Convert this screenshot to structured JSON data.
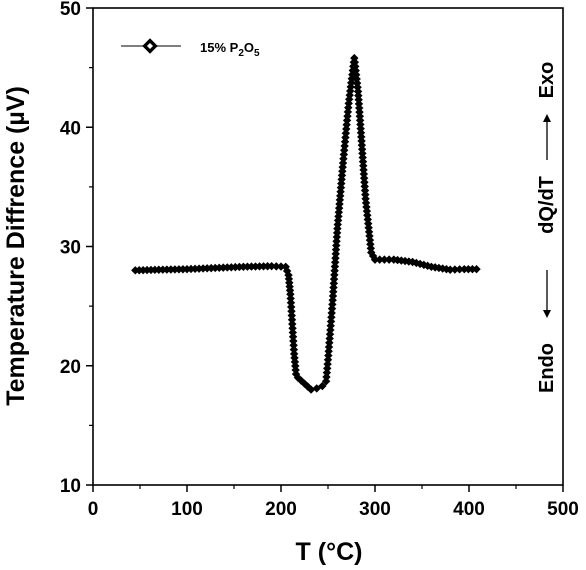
{
  "chart_data": {
    "type": "scatter",
    "title": "",
    "xlabel": "T (°C)",
    "ylabel": "Temperature Diffrence (µV)",
    "xlim": [
      0,
      500
    ],
    "ylim": [
      10,
      50
    ],
    "x_ticks": [
      0,
      100,
      200,
      300,
      400,
      500
    ],
    "y_ticks": [
      10,
      20,
      30,
      40,
      50
    ],
    "grid": false,
    "legend_placement": "top-left",
    "annotations": {
      "exo": "Exo",
      "dqdt": "dQ/dT",
      "endo": "Endo"
    },
    "series": [
      {
        "name": "15% P2O5",
        "marker": "diamond",
        "color": "#000000",
        "x": [
          45,
          70,
          100,
          130,
          160,
          190,
          205,
          208,
          210,
          212,
          214,
          216,
          218,
          225,
          232,
          238,
          244,
          248,
          250,
          255,
          260,
          266,
          272,
          278,
          282,
          286,
          290,
          296,
          300,
          320,
          340,
          360,
          380,
          395,
          408
        ],
        "y": [
          28.0,
          28.05,
          28.1,
          28.2,
          28.3,
          28.35,
          28.3,
          27.6,
          26.0,
          23.5,
          21.0,
          19.3,
          19.0,
          18.5,
          18.0,
          18.1,
          18.3,
          18.7,
          20.5,
          25.5,
          31.5,
          37.0,
          42.0,
          45.8,
          43.0,
          38.5,
          34.0,
          29.5,
          28.9,
          28.9,
          28.7,
          28.3,
          28.05,
          28.1,
          28.1
        ]
      }
    ],
    "legend": {
      "base": "15% P",
      "sub1": "2",
      "mid": "O",
      "sub2": "5"
    }
  }
}
